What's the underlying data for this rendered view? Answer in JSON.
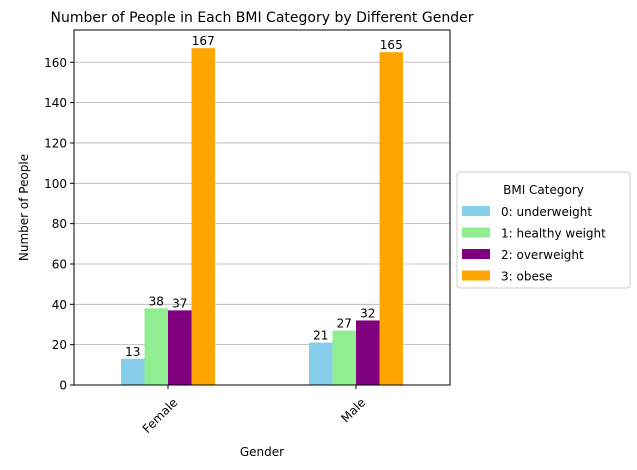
{
  "chart_data": {
    "type": "bar",
    "title": "Number of People in Each BMI Category by Different Gender",
    "xlabel": "Gender",
    "ylabel": "Number of People",
    "categories": [
      "Female",
      "Male"
    ],
    "ylim": [
      0,
      176
    ],
    "yticks": [
      0,
      20,
      40,
      60,
      80,
      100,
      120,
      140,
      160
    ],
    "grid": "y",
    "legend": {
      "title": "BMI Category",
      "placement": "right"
    },
    "series": [
      {
        "name": "0: underweight",
        "color": "#87ceeb",
        "values": [
          13,
          21
        ]
      },
      {
        "name": "1: healthy weight",
        "color": "#90ee90",
        "values": [
          38,
          27
        ]
      },
      {
        "name": "2: overweight",
        "color": "#800080",
        "values": [
          37,
          32
        ]
      },
      {
        "name": "3: obese",
        "color": "#ffa500",
        "values": [
          167,
          165
        ]
      }
    ]
  }
}
